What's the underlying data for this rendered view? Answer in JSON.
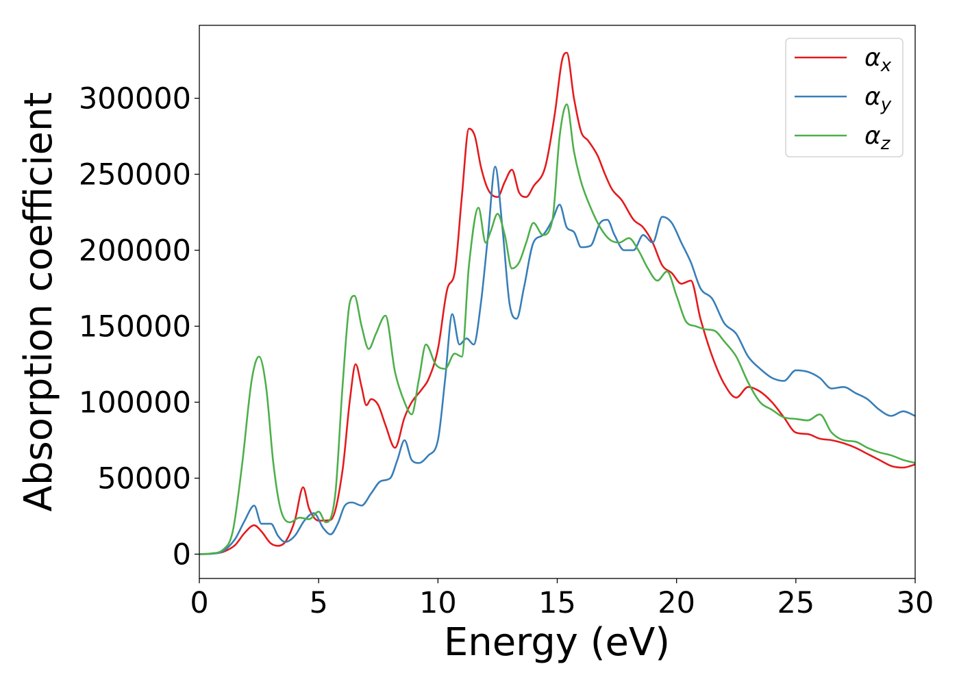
{
  "chart_data": {
    "type": "line",
    "xlabel": "Energy (eV)",
    "ylabel": "Absorption coefficient",
    "xlim": [
      0,
      30
    ],
    "ylim": [
      -16000,
      348000
    ],
    "x_ticks": [
      0,
      5,
      10,
      15,
      20,
      25,
      30
    ],
    "y_ticks": [
      0,
      50000,
      100000,
      150000,
      200000,
      250000,
      300000
    ],
    "grid": false,
    "legend_position": "top-right",
    "series": [
      {
        "name": "α",
        "subscript": "x",
        "color": "#e41a1c",
        "x": [
          0,
          0.5,
          1.0,
          1.5,
          1.9,
          2.3,
          2.6,
          3.0,
          3.3,
          3.6,
          4.0,
          4.35,
          4.6,
          5.0,
          5.5,
          6.0,
          6.3,
          6.55,
          6.8,
          7.0,
          7.2,
          7.5,
          7.8,
          8.2,
          8.6,
          8.9,
          9.3,
          9.6,
          10.0,
          10.4,
          10.7,
          11.0,
          11.3,
          11.55,
          11.8,
          12.1,
          12.5,
          12.8,
          13.1,
          13.4,
          13.7,
          14.0,
          14.5,
          14.9,
          15.2,
          15.4,
          15.7,
          16.0,
          16.3,
          16.7,
          17.0,
          17.3,
          17.7,
          18.2,
          18.6,
          19.0,
          19.4,
          19.8,
          20.2,
          20.6,
          21.0,
          21.5,
          22.0,
          22.5,
          23.0,
          23.5,
          24.0,
          24.5,
          25.0,
          25.5,
          26.0,
          26.5,
          27.0,
          27.5,
          28.0,
          28.5,
          29.0,
          29.5,
          30.0
        ],
        "y": [
          0,
          300,
          1500,
          6000,
          14000,
          19000,
          15000,
          7000,
          5500,
          8000,
          22000,
          44000,
          30000,
          22000,
          22500,
          55000,
          100000,
          125000,
          110000,
          98000,
          102000,
          98000,
          85000,
          70000,
          90000,
          100000,
          108000,
          115000,
          135000,
          175000,
          185000,
          235000,
          280000,
          275000,
          255000,
          240000,
          235000,
          245000,
          253000,
          238000,
          235000,
          242000,
          255000,
          290000,
          325000,
          330000,
          300000,
          278000,
          272000,
          262000,
          250000,
          240000,
          233000,
          220000,
          215000,
          205000,
          190000,
          185000,
          178000,
          180000,
          155000,
          130000,
          112000,
          103000,
          110000,
          107000,
          100000,
          90000,
          80000,
          79000,
          76000,
          75000,
          73000,
          70000,
          66000,
          62000,
          58000,
          57000,
          59000
        ]
      },
      {
        "name": "α",
        "subscript": "y",
        "color": "#377eb8",
        "x": [
          0,
          0.5,
          1.0,
          1.5,
          1.9,
          2.3,
          2.6,
          3.0,
          3.3,
          3.6,
          4.0,
          4.4,
          4.8,
          5.2,
          5.5,
          5.8,
          6.1,
          6.4,
          6.8,
          7.2,
          7.6,
          8.0,
          8.3,
          8.6,
          8.9,
          9.2,
          9.6,
          10.0,
          10.3,
          10.6,
          10.9,
          11.2,
          11.5,
          11.8,
          12.1,
          12.4,
          12.7,
          13.0,
          13.3,
          13.6,
          14.0,
          14.4,
          14.8,
          15.1,
          15.4,
          15.7,
          16.0,
          16.4,
          16.8,
          17.1,
          17.4,
          17.8,
          18.2,
          18.6,
          19.0,
          19.4,
          19.8,
          20.2,
          20.6,
          21.0,
          21.5,
          22.0,
          22.5,
          23.0,
          23.5,
          24.0,
          24.5,
          25.0,
          25.5,
          26.0,
          26.5,
          27.0,
          27.5,
          28.0,
          28.5,
          29.0,
          29.5,
          30.0
        ],
        "y": [
          0,
          300,
          2000,
          10000,
          22000,
          32000,
          20000,
          20000,
          12000,
          8000,
          12000,
          22000,
          27000,
          17000,
          13000,
          20000,
          32000,
          34000,
          32000,
          40000,
          48000,
          50000,
          62000,
          75000,
          62000,
          60000,
          65000,
          75000,
          115000,
          158000,
          138000,
          142000,
          138000,
          165000,
          210000,
          255000,
          215000,
          165000,
          155000,
          175000,
          205000,
          210000,
          220000,
          230000,
          215000,
          212000,
          202000,
          203000,
          218000,
          220000,
          210000,
          200000,
          200000,
          210000,
          205000,
          222000,
          218000,
          205000,
          192000,
          175000,
          168000,
          152000,
          145000,
          130000,
          122000,
          116000,
          114000,
          121000,
          120000,
          116000,
          109000,
          110000,
          106000,
          102000,
          95000,
          91000,
          94000,
          91000
        ]
      },
      {
        "name": "α",
        "subscript": "z",
        "color": "#4daf4a",
        "x": [
          0,
          0.5,
          1.0,
          1.4,
          1.8,
          2.2,
          2.5,
          2.8,
          3.1,
          3.4,
          3.8,
          4.2,
          4.6,
          5.0,
          5.3,
          5.7,
          6.0,
          6.3,
          6.5,
          6.8,
          7.1,
          7.4,
          7.8,
          8.2,
          8.6,
          8.9,
          9.2,
          9.5,
          9.9,
          10.3,
          10.7,
          11.0,
          11.3,
          11.7,
          12.0,
          12.2,
          12.5,
          12.8,
          13.1,
          13.4,
          13.7,
          14.0,
          14.4,
          14.8,
          15.1,
          15.4,
          15.7,
          16.0,
          16.4,
          16.8,
          17.2,
          17.6,
          18.0,
          18.4,
          18.8,
          19.2,
          19.6,
          20.0,
          20.4,
          20.8,
          21.2,
          21.6,
          22.0,
          22.5,
          23.0,
          23.5,
          24.0,
          24.5,
          25.0,
          25.5,
          26.0,
          26.5,
          27.0,
          27.5,
          28.0,
          28.5,
          29.0,
          29.5,
          30.0
        ],
        "y": [
          0,
          500,
          3000,
          15000,
          60000,
          115000,
          130000,
          110000,
          60000,
          30000,
          21000,
          24000,
          23000,
          28000,
          21000,
          40000,
          110000,
          165000,
          170000,
          150000,
          135000,
          145000,
          157000,
          120000,
          100000,
          92000,
          115000,
          138000,
          125000,
          122000,
          132000,
          130000,
          190000,
          228000,
          205000,
          212000,
          224000,
          210000,
          188000,
          192000,
          205000,
          218000,
          210000,
          220000,
          275000,
          296000,
          265000,
          245000,
          228000,
          215000,
          207000,
          205000,
          208000,
          200000,
          188000,
          180000,
          186000,
          170000,
          153000,
          150000,
          148000,
          147000,
          140000,
          130000,
          113000,
          100000,
          95000,
          90000,
          89000,
          88000,
          92000,
          80000,
          75000,
          74000,
          70000,
          67000,
          65000,
          62000,
          60000
        ]
      }
    ]
  }
}
